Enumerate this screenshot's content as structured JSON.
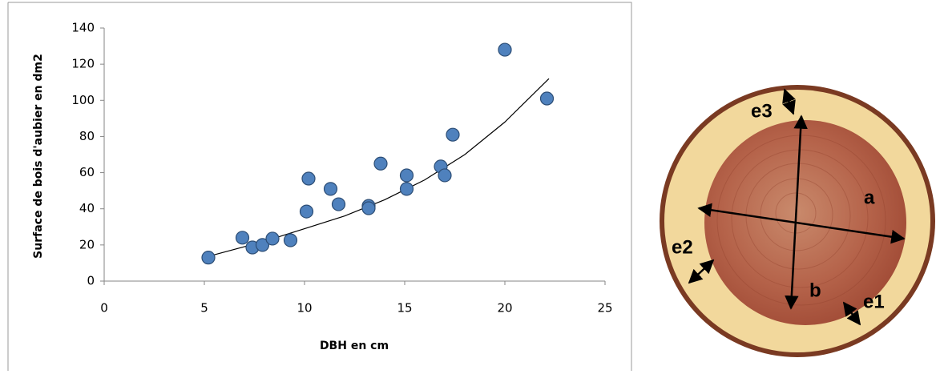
{
  "chart_data": {
    "type": "scatter",
    "x_label": "DBH en cm",
    "y_label": "Surface de bois d'aubier en dm2",
    "x": [
      5.2,
      6.9,
      7.4,
      7.9,
      8.4,
      9.3,
      10.1,
      10.2,
      11.3,
      11.7,
      13.2,
      13.2,
      13.8,
      15.1,
      15.1,
      16.8,
      17.0,
      17.4,
      20.0,
      22.1
    ],
    "values": [
      13,
      24,
      18.6,
      20,
      23.5,
      22.6,
      38.5,
      56.7,
      51,
      42.5,
      41.6,
      40.3,
      65,
      58.5,
      51,
      63.4,
      58.5,
      81,
      128,
      101
    ],
    "color": "#4f81bd",
    "trend": {
      "x": [
        5.3,
        8,
        10,
        12,
        14,
        16,
        18,
        20,
        22.2
      ],
      "values": [
        14,
        22,
        29,
        36,
        45,
        56,
        70,
        88,
        112
      ],
      "color": "#000000"
    },
    "xlim": [
      0,
      25
    ],
    "xticks": [
      0,
      5,
      10,
      15,
      20,
      25
    ],
    "ylim": [
      0,
      140
    ],
    "yticks": [
      0,
      20,
      40,
      60,
      80,
      100,
      120,
      140
    ]
  },
  "figure": {
    "labels": [
      "a",
      "b",
      "e1",
      "e2",
      "e3"
    ]
  }
}
